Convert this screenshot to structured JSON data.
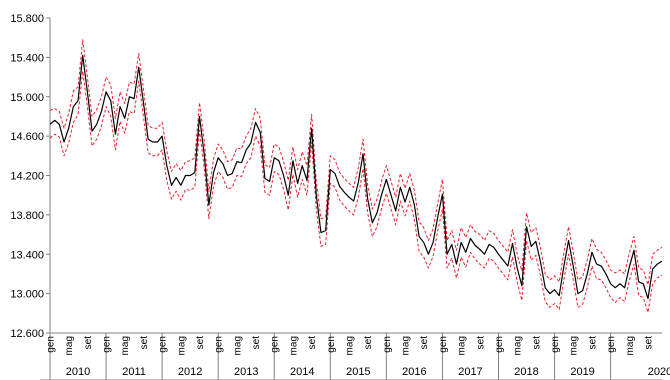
{
  "chart_data": {
    "type": "line",
    "title": "",
    "xlabel": "",
    "ylabel": "",
    "ylim": [
      12600,
      15800
    ],
    "y_ticks": [
      "15.800",
      "15.400",
      "15.000",
      "14.600",
      "14.200",
      "13.800",
      "13.400",
      "13.000",
      "12.600"
    ],
    "y_tick_values": [
      15800,
      15400,
      15000,
      14600,
      14200,
      13800,
      13400,
      13000,
      12600
    ],
    "month_tick_labels": [
      "gen",
      "mag",
      "set"
    ],
    "years": [
      "2010",
      "2011",
      "2012",
      "2013",
      "2014",
      "2015",
      "2016",
      "2017",
      "2018",
      "2019",
      "2020"
    ],
    "grid": false,
    "legend": "none",
    "colors": {
      "central": "#000000",
      "band": "#e8222a",
      "axis": "#808080"
    },
    "x_unit": "month index starting Jan 2010",
    "series": [
      {
        "style": "solid",
        "values": [
          14720,
          14760,
          14720,
          14540,
          14680,
          14900,
          14960,
          15420,
          15050,
          14650,
          14720,
          14850,
          15050,
          14960,
          14620,
          14900,
          14780,
          15000,
          14980,
          15300,
          14940,
          14570,
          14540,
          14540,
          14600,
          14300,
          14100,
          14180,
          14100,
          14200,
          14200,
          14230,
          14800,
          14420,
          13900,
          14230,
          14380,
          14320,
          14200,
          14220,
          14340,
          14330,
          14460,
          14530,
          14740,
          14640,
          14170,
          14140,
          14380,
          14350,
          14200,
          14000,
          14350,
          14120,
          14300,
          14150,
          14680,
          14000,
          13620,
          13640,
          14260,
          14220,
          14090,
          14030,
          13980,
          13940,
          14130,
          14420,
          13960,
          13720,
          13820,
          14010,
          14160,
          14000,
          13840,
          14080,
          13930,
          14080,
          13900,
          13580,
          13520,
          13400,
          13520,
          13780,
          14010,
          13400,
          13500,
          13300,
          13520,
          13420,
          13560,
          13490,
          13450,
          13400,
          13500,
          13470,
          13400,
          13340,
          13280,
          13510,
          13260,
          13080,
          13680,
          13480,
          13530,
          13320,
          13060,
          13000,
          13040,
          12980,
          13280,
          13540,
          13280,
          13000,
          13030,
          13200,
          13420,
          13300,
          13280,
          13200,
          13100,
          13060,
          13100,
          13060,
          13270,
          13440,
          13120,
          13100,
          12950,
          13250,
          13300,
          13330
        ]
      },
      {
        "style": "dashed",
        "values": [
          14860,
          14880,
          14850,
          14680,
          14830,
          15060,
          15100,
          15580,
          15200,
          14800,
          14870,
          15000,
          15200,
          15120,
          14780,
          15050,
          14930,
          15150,
          15130,
          15440,
          15080,
          14710,
          14680,
          14680,
          14740,
          14450,
          14240,
          14320,
          14250,
          14340,
          14350,
          14380,
          14940,
          14560,
          14040,
          14370,
          14520,
          14460,
          14340,
          14360,
          14480,
          14470,
          14600,
          14680,
          14880,
          14780,
          14310,
          14280,
          14520,
          14490,
          14340,
          14150,
          14490,
          14260,
          14440,
          14300,
          14820,
          14140,
          13760,
          13780,
          14400,
          14360,
          14230,
          14170,
          14120,
          14080,
          14280,
          14570,
          14100,
          13860,
          13960,
          14150,
          14300,
          14140,
          13980,
          14220,
          14070,
          14220,
          14050,
          13730,
          13670,
          13540,
          13660,
          13920,
          14160,
          13540,
          13640,
          13440,
          13670,
          13570,
          13700,
          13630,
          13600,
          13540,
          13640,
          13610,
          13540,
          13480,
          13420,
          13650,
          13400,
          13230,
          13820,
          13620,
          13670,
          13460,
          13200,
          13140,
          13180,
          13120,
          13420,
          13680,
          13420,
          13140,
          13170,
          13340,
          13560,
          13450,
          13420,
          13340,
          13240,
          13210,
          13240,
          13200,
          13410,
          13580,
          13260,
          13240,
          13090,
          13400,
          13440,
          13470
        ]
      },
      {
        "style": "dashed",
        "values": [
          14580,
          14620,
          14590,
          14400,
          14530,
          14740,
          14820,
          15260,
          14900,
          14500,
          14570,
          14700,
          14900,
          14800,
          14460,
          14750,
          14630,
          14850,
          14830,
          15160,
          14800,
          14430,
          14400,
          14400,
          14460,
          14150,
          13960,
          14040,
          13950,
          14060,
          14050,
          14080,
          14660,
          14280,
          13760,
          14090,
          14240,
          14180,
          14060,
          14080,
          14200,
          14190,
          14320,
          14380,
          14600,
          14500,
          14030,
          14000,
          14240,
          14210,
          14060,
          13850,
          14210,
          13980,
          14160,
          14000,
          14540,
          13860,
          13480,
          13500,
          14120,
          14080,
          13950,
          13890,
          13840,
          13800,
          13980,
          14270,
          13820,
          13580,
          13680,
          13870,
          14020,
          13860,
          13700,
          13940,
          13790,
          13940,
          13750,
          13430,
          13370,
          13260,
          13380,
          13640,
          13860,
          13260,
          13360,
          13160,
          13370,
          13270,
          13420,
          13350,
          13300,
          13260,
          13360,
          13330,
          13260,
          13200,
          13140,
          13370,
          13120,
          12930,
          13540,
          13340,
          13390,
          13180,
          12920,
          12860,
          12900,
          12840,
          13140,
          13400,
          13140,
          12860,
          12890,
          13060,
          13280,
          13150,
          13140,
          13060,
          12960,
          12910,
          12960,
          12920,
          13130,
          13300,
          12980,
          12960,
          12810,
          13100,
          13160,
          13190
        ]
      }
    ]
  }
}
